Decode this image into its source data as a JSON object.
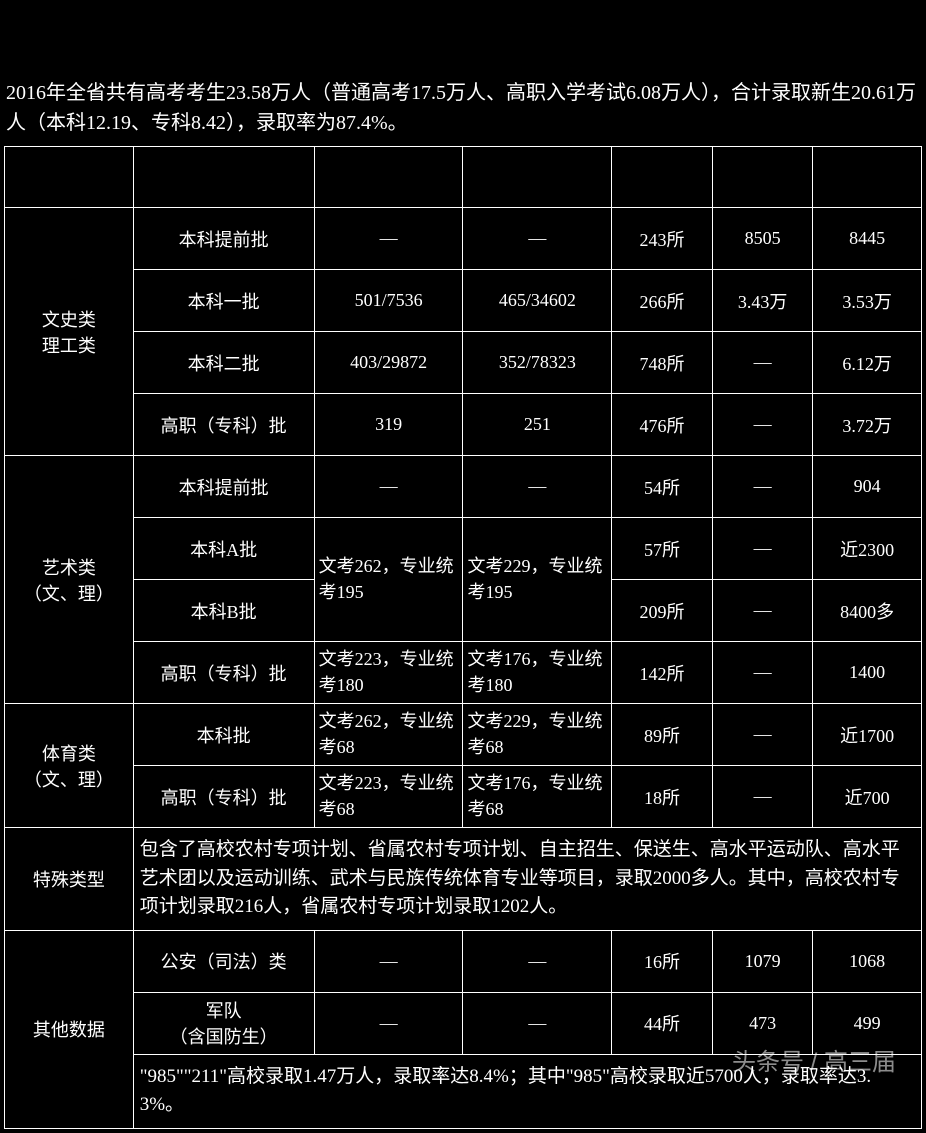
{
  "intro": "2016年全省共有高考考生23.58万人（普通高考17.5万人、高职入学考试6.08万人），合计录取新生20.61万人（本科12.19、专科8.42），录取率为87.4%。",
  "categories": {
    "wenshi": {
      "label_line1": "文史类",
      "label_line2": "理工类",
      "rows": [
        {
          "batch": "本科提前批",
          "a": "—",
          "b": "—",
          "c": "243所",
          "d": "8505",
          "e": "8445"
        },
        {
          "batch": "本科一批",
          "a": "501/7536",
          "b": "465/34602",
          "c": "266所",
          "d": "3.43万",
          "e": "3.53万"
        },
        {
          "batch": "本科二批",
          "a": "403/29872",
          "b": "352/78323",
          "c": "748所",
          "d": "—",
          "e": "6.12万"
        },
        {
          "batch": "高职（专科）批",
          "a": "319",
          "b": "251",
          "c": "476所",
          "d": "—",
          "e": "3.72万"
        }
      ]
    },
    "art": {
      "label_line1": "艺术类",
      "label_line2": "（文、理）",
      "merged_a": "文考262，专业统考195",
      "merged_b": "文考229，专业统考195",
      "rows": [
        {
          "batch": "本科提前批",
          "a": "—",
          "b": "—",
          "c": "54所",
          "d": "—",
          "e": "904"
        },
        {
          "batch": "本科A批",
          "c": "57所",
          "d": "—",
          "e": "近2300"
        },
        {
          "batch": "本科B批",
          "c": "209所",
          "d": "—",
          "e": "8400多"
        },
        {
          "batch": "高职（专科）批",
          "a": "文考223，专业统考180",
          "b": "文考176，专业统考180",
          "c": "142所",
          "d": "—",
          "e": "1400"
        }
      ]
    },
    "sport": {
      "label_line1": "体育类",
      "label_line2": "（文、理）",
      "rows": [
        {
          "batch": "本科批",
          "a": "文考262，专业统考68",
          "b": "文考229，专业统考68",
          "c": "89所",
          "d": "—",
          "e": "近1700"
        },
        {
          "batch": "高职（专科）批",
          "a": "文考223，专业统考68",
          "b": "文考176，专业统考68",
          "c": "18所",
          "d": "—",
          "e": "近700"
        }
      ]
    },
    "special": {
      "label": "特殊类型",
      "text": "包含了高校农村专项计划、省属农村专项计划、自主招生、保送生、高水平运动队、高水平艺术团以及运动训练、武术与民族传统体育专业等项目，录取2000多人。其中，高校农村专项计划录取216人，省属农村专项计划录取1202人。"
    },
    "other": {
      "label": "其他数据",
      "rows": [
        {
          "batch": "公安（司法）类",
          "a": "—",
          "b": "—",
          "c": "16所",
          "d": "1079",
          "e": "1068"
        },
        {
          "batch_line1": "军队",
          "batch_line2": "（含国防生）",
          "a": "—",
          "b": "—",
          "c": "44所",
          "d": "473",
          "e": "499"
        }
      ],
      "footer": "\"985\"\"211\"高校录取1.47万人，录取率达8.4%；其中\"985\"高校录取近5700人，录取率达3.3%。"
    }
  },
  "watermark": "头条号 / 高三届"
}
